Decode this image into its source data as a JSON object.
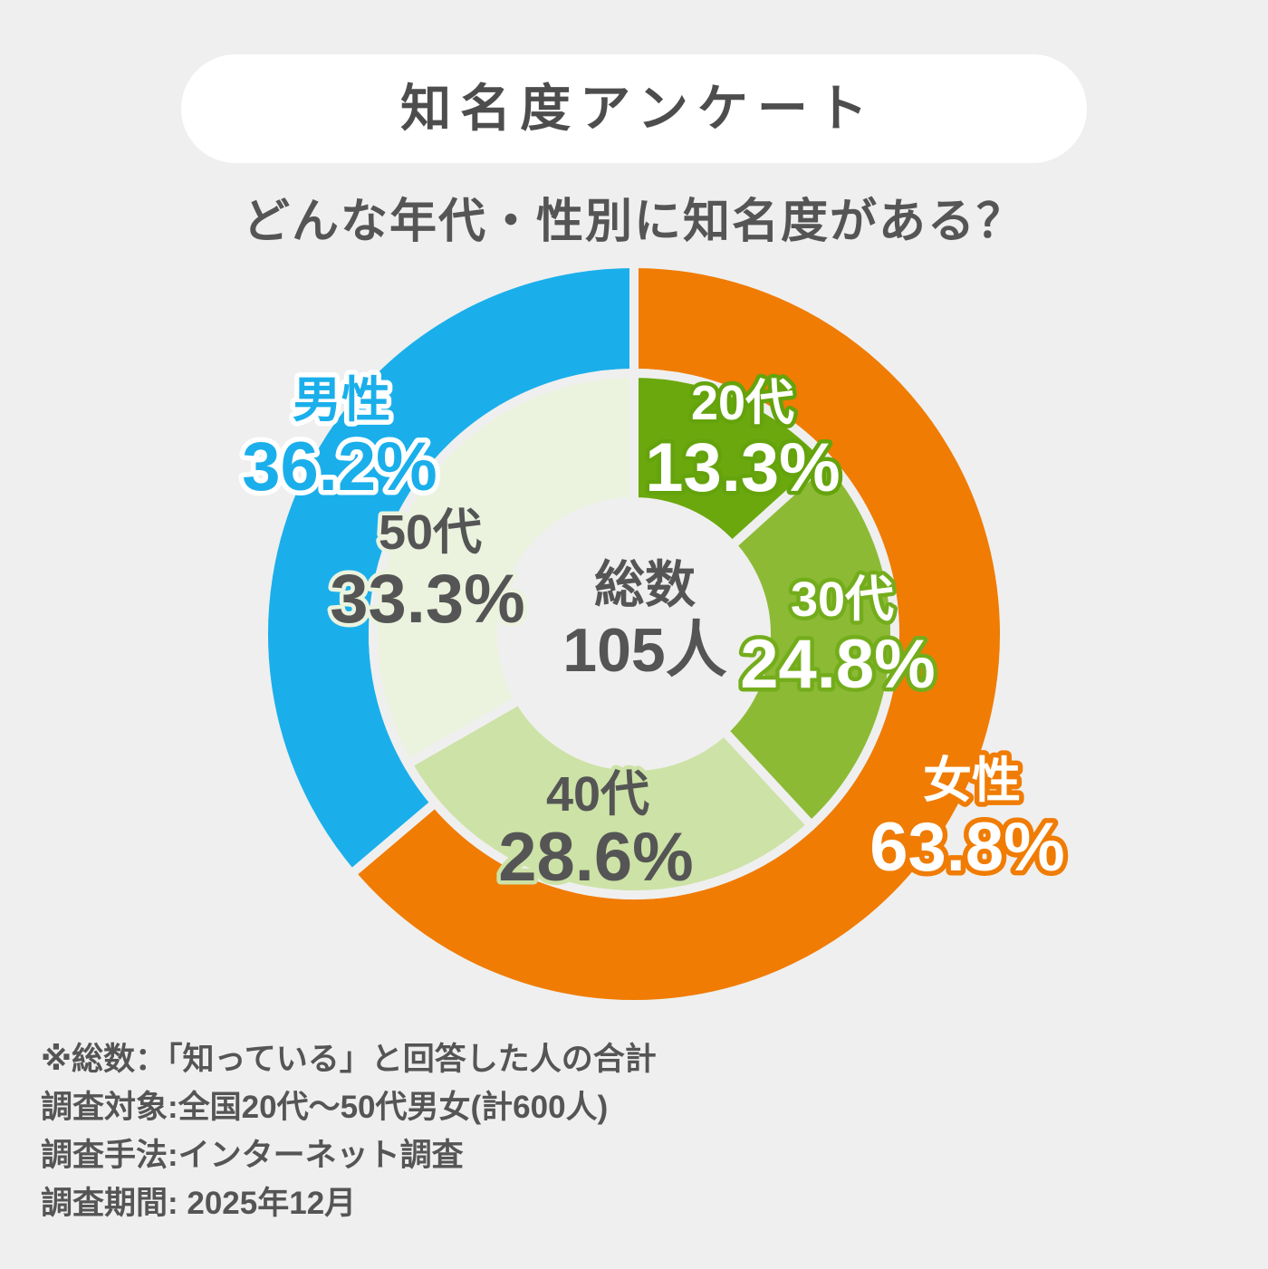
{
  "chart_data": {
    "type": "pie",
    "title": "知名度アンケート",
    "subtitle": "どんな年代・性別に知名度がある？",
    "center_label": {
      "label": "総数",
      "value": "105人"
    },
    "series": [
      {
        "categories": [
          "女性",
          "男性"
        ],
        "values": [
          63.8,
          36.2
        ],
        "value_labels": [
          "63.8%",
          "36.2%"
        ],
        "colors": [
          "#f07c04",
          "#1aafeb"
        ]
      },
      {
        "categories": [
          "20代",
          "30代",
          "40代",
          "50代"
        ],
        "values": [
          13.3,
          24.8,
          28.6,
          33.3
        ],
        "value_labels": [
          "13.3%",
          "24.8%",
          "28.6%",
          "33.3%"
        ],
        "colors": [
          "#6aa80e",
          "#8cba35",
          "#cde2a6",
          "#ebf3df"
        ]
      }
    ]
  },
  "footnotes": [
    "※総数：「知っている」と回答した人の合計",
    "調査対象:全国20代～50代男女(計600人)",
    "調査手法:インターネット調査",
    "調査期間: 2025年12月"
  ],
  "colors": {
    "background": "#efefef",
    "pill": "#ffffff",
    "text": "#555555"
  }
}
